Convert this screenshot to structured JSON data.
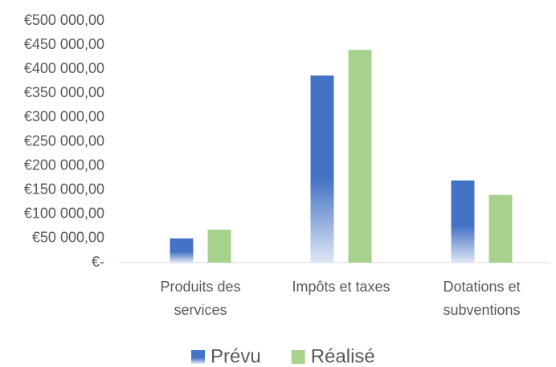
{
  "chart_data": {
    "type": "bar",
    "categories": [
      "Produits des services",
      "Impôts et taxes",
      "Dotations et subventions"
    ],
    "series": [
      {
        "name": "Prévu",
        "color": "#4472c4",
        "values": [
          50000,
          387000,
          170000
        ]
      },
      {
        "name": "Réalisé",
        "color": "#a9d18e",
        "values": [
          68000,
          440000,
          140000
        ]
      }
    ],
    "ylim": [
      0,
      500000
    ],
    "yticks": [
      {
        "value": 0,
        "label": "€-"
      },
      {
        "value": 50000,
        "label": "€50 000,00"
      },
      {
        "value": 100000,
        "label": "€100 000,00"
      },
      {
        "value": 150000,
        "label": "€150 000,00"
      },
      {
        "value": 200000,
        "label": "€200 000,00"
      },
      {
        "value": 250000,
        "label": "€250 000,00"
      },
      {
        "value": 300000,
        "label": "€300 000,00"
      },
      {
        "value": 350000,
        "label": "€350 000,00"
      },
      {
        "value": 400000,
        "label": "€400 000,00"
      },
      {
        "value": 450000,
        "label": "€450 000,00"
      },
      {
        "value": 500000,
        "label": "€500 000,00"
      }
    ],
    "grid": false,
    "legend": "bottom"
  }
}
